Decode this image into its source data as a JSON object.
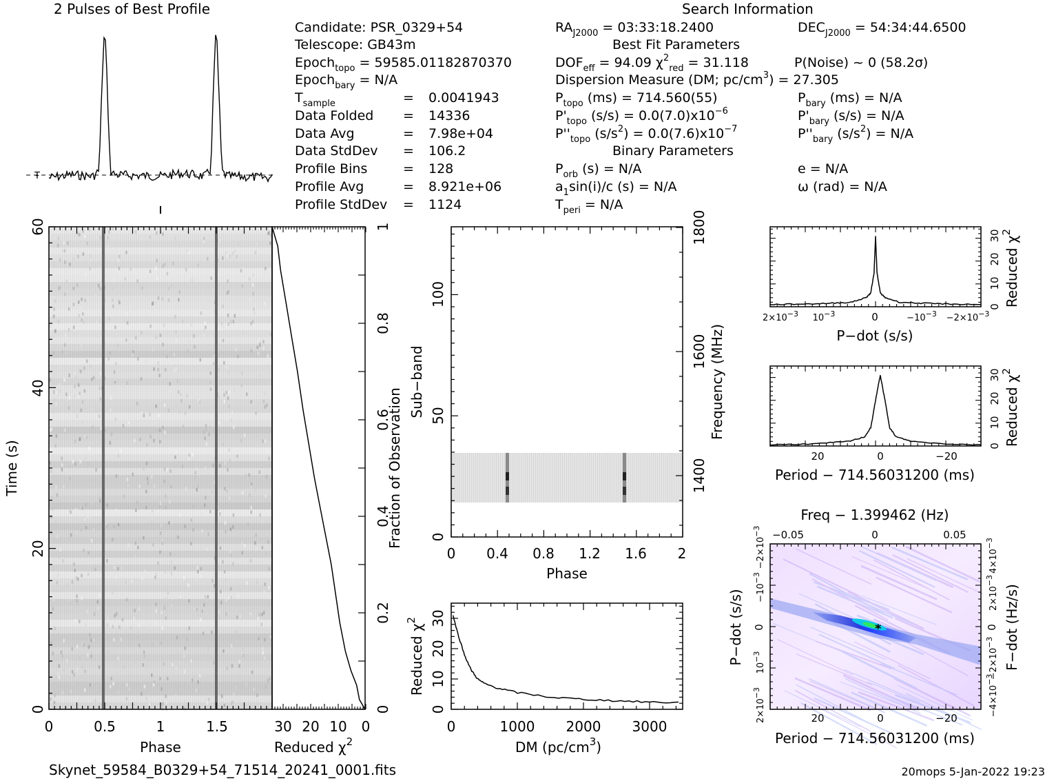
{
  "filename": "Skynet_59584_B0329+54_71514_20241_0001.fits",
  "footer_stamp": "20mops   5-Jan-2022 19:23",
  "profile_title": "2 Pulses of Best Profile",
  "search_title": "Search Information",
  "info_left": [
    [
      "Candidate:",
      "PSR_0329+54"
    ],
    [
      "Telescope:",
      "GB43m"
    ],
    [
      "Epoch_topo",
      "= 59585.01182870370"
    ],
    [
      "Epoch_bary",
      "= N/A"
    ],
    [
      "T_sample",
      "=",
      "0.0041943"
    ],
    [
      "Data Folded",
      "=",
      "14336"
    ],
    [
      "Data Avg",
      "=",
      "7.98e+04"
    ],
    [
      "Data StdDev",
      "=",
      "106.2"
    ],
    [
      "Profile Bins",
      "=",
      "128"
    ],
    [
      "Profile Avg",
      "=",
      "8.921e+06"
    ],
    [
      "Profile StdDev",
      "=",
      "1124"
    ]
  ],
  "info_mid": {
    "ra": "RA_J2000 = 03:33:18.2400",
    "best_fit_header": "Best Fit Parameters",
    "dof": "DOF_eff = 94.09",
    "chi2": "chi2_red = 31.118",
    "pnoise": "P(Noise) ~ 0   (58.2σ)",
    "dm": "Dispersion Measure (DM; pc/cm3) = 27.305",
    "ptopo": "P_topo (ms) =  714.560(55)",
    "pdtopo": "P'_topo (s/s) = 0.0(7.0)x10^-6",
    "pddtopo": "P''_topo (s/s2) = 0.0(7.6)x10^-7",
    "binary_header": "Binary Parameters",
    "porb": "P_orb (s) = N/A",
    "a1sini": "a1sin(i)/c (s) = N/A",
    "tperi": "T_peri = N/A"
  },
  "info_right": {
    "dec": "DEC_J2000 = 54:34:44.6500",
    "pbary": "P_bary (ms) = N/A",
    "pdbary": "P'_bary (s/s) = N/A",
    "pddbary": "P''_bary (s/s2) = N/A",
    "e": "e = N/A",
    "omega": "ω (rad) = N/A"
  },
  "chart_data": [
    {
      "type": "line",
      "panel": "profile",
      "title": "2 Pulses of Best Profile",
      "x": [
        0,
        0.2,
        0.4,
        0.45,
        0.48,
        0.5,
        0.52,
        0.55,
        0.6,
        1.0,
        1.2,
        1.4,
        1.45,
        1.48,
        1.5,
        1.52,
        1.55,
        1.6,
        2.0
      ],
      "y": [
        0,
        0.02,
        0.01,
        0.05,
        0.7,
        1.0,
        0.65,
        0.04,
        0.02,
        0.01,
        0.03,
        0.01,
        0.05,
        0.7,
        1.0,
        0.62,
        0.04,
        0.01,
        0.0
      ],
      "xlim": [
        0,
        2
      ]
    },
    {
      "type": "heatmap",
      "panel": "time-phase",
      "xlabel": "Phase",
      "ylabel": "Time (s)",
      "xlim": [
        0,
        2
      ],
      "ylim": [
        0,
        60
      ],
      "xticks": [
        "0",
        "0.5",
        "1",
        "1.5"
      ],
      "yticks": [
        "0",
        "20",
        "40",
        "60"
      ],
      "pulse_phases": [
        0.48,
        1.48
      ]
    },
    {
      "type": "line",
      "panel": "reduced-chi2-vs-time",
      "xlabel": "Reduced χ2",
      "ylabel": "Fraction of Observation",
      "xticks": [
        "30",
        "20",
        "10",
        "0"
      ],
      "yticks": [
        "0.2",
        "0.4",
        "0.6",
        "0.8",
        "1"
      ],
      "x": [
        0,
        2,
        3,
        5,
        7,
        9,
        10,
        12,
        14,
        16,
        18,
        20,
        22,
        24,
        26,
        28,
        30,
        31,
        33
      ],
      "y": [
        0,
        0.02,
        0.05,
        0.08,
        0.12,
        0.18,
        0.22,
        0.3,
        0.36,
        0.42,
        0.48,
        0.55,
        0.62,
        0.7,
        0.77,
        0.84,
        0.91,
        0.96,
        1.0
      ],
      "xlim": [
        33,
        0
      ],
      "ylim": [
        0,
        1
      ]
    },
    {
      "type": "heatmap",
      "panel": "subband-phase",
      "xlabel": "Phase",
      "ylabel": "Sub-band",
      "y2label": "Frequency (MHz)",
      "xticks": [
        "0",
        "0.4",
        "0.8",
        "1.2",
        "1.6",
        "2"
      ],
      "yticks": [
        "0",
        "50",
        "100"
      ],
      "y2ticks": [
        "1400",
        "1600",
        "1800"
      ],
      "xlim": [
        0,
        2
      ],
      "ylim": [
        0,
        128
      ],
      "occupied_subbands": [
        14,
        35
      ],
      "pulse_phases": [
        0.48,
        1.48
      ]
    },
    {
      "type": "line",
      "panel": "dm-curve",
      "xlabel": "DM (pc/cm3)",
      "ylabel": "Reduced χ2",
      "xticks": [
        "0",
        "1000",
        "2000",
        "3000"
      ],
      "yticks": [
        "0",
        "10",
        "20",
        "30"
      ],
      "x": [
        27,
        100,
        200,
        300,
        400,
        500,
        700,
        1000,
        1500,
        2000,
        2500,
        3000,
        3500
      ],
      "y": [
        31,
        25,
        18,
        13,
        10,
        8.5,
        7,
        5.5,
        4,
        3.3,
        2.8,
        2.4,
        2.2
      ],
      "xlim": [
        0,
        3500
      ],
      "ylim": [
        0,
        35
      ]
    },
    {
      "type": "line",
      "panel": "pdot-curve",
      "xlabel": "P−dot (s/s)",
      "ylabel": "Reduced χ2",
      "xticks": [
        "2×10^-3",
        "10^-3",
        "0",
        "−10^-3",
        "−2×10^-3"
      ],
      "yticks": [
        "0",
        "10",
        "20",
        "30"
      ],
      "x": [
        0.0022,
        0.0015,
        0.001,
        0.0005,
        0.0002,
        0.0001,
        3e-05,
        0,
        -3e-05,
        -0.0001,
        -0.0002,
        -0.0005,
        -0.001,
        -0.0015,
        -0.0022
      ],
      "y": [
        1,
        1.2,
        1.5,
        2,
        4,
        6,
        15,
        31,
        15,
        6,
        4,
        2,
        1.5,
        1.2,
        1
      ],
      "xlim": [
        0.0022,
        -0.0022
      ],
      "ylim": [
        0,
        35
      ]
    },
    {
      "type": "line",
      "panel": "period-curve",
      "xlabel": "Period − 714.56031200 (ms)",
      "ylabel": "Reduced χ2",
      "xticks": [
        "20",
        "0",
        "−20"
      ],
      "yticks": [
        "0",
        "10",
        "20",
        "30"
      ],
      "x": [
        35,
        20,
        10,
        5,
        3,
        1.5,
        0,
        -1.5,
        -3,
        -5,
        -10,
        -20,
        -32
      ],
      "y": [
        0.5,
        1,
        2,
        4,
        8,
        20,
        31,
        20,
        8,
        4,
        2,
        1,
        0.5
      ],
      "xlim": [
        35,
        -32
      ],
      "ylim": [
        0,
        35
      ]
    },
    {
      "type": "heatmap",
      "panel": "period-pdot",
      "title": "Freq − 1.399462 (Hz)",
      "xlabel": "Period − 714.56031200 (ms)",
      "ylabel": "P−dot (s/s)",
      "y2label": "F−dot (Hz/s)",
      "xticks": [
        "20",
        "0",
        "−20"
      ],
      "x2ticks": [
        "−0.05",
        "0",
        "0.05"
      ],
      "yticks": [
        "2×10^-3",
        "10^-3",
        "0",
        "−10^-3",
        "−2×10^-3"
      ],
      "y2ticks": [
        "−4×10^-3",
        "−2×10^-3",
        "0",
        "2×10^-3",
        "4×10^-3"
      ]
    }
  ]
}
